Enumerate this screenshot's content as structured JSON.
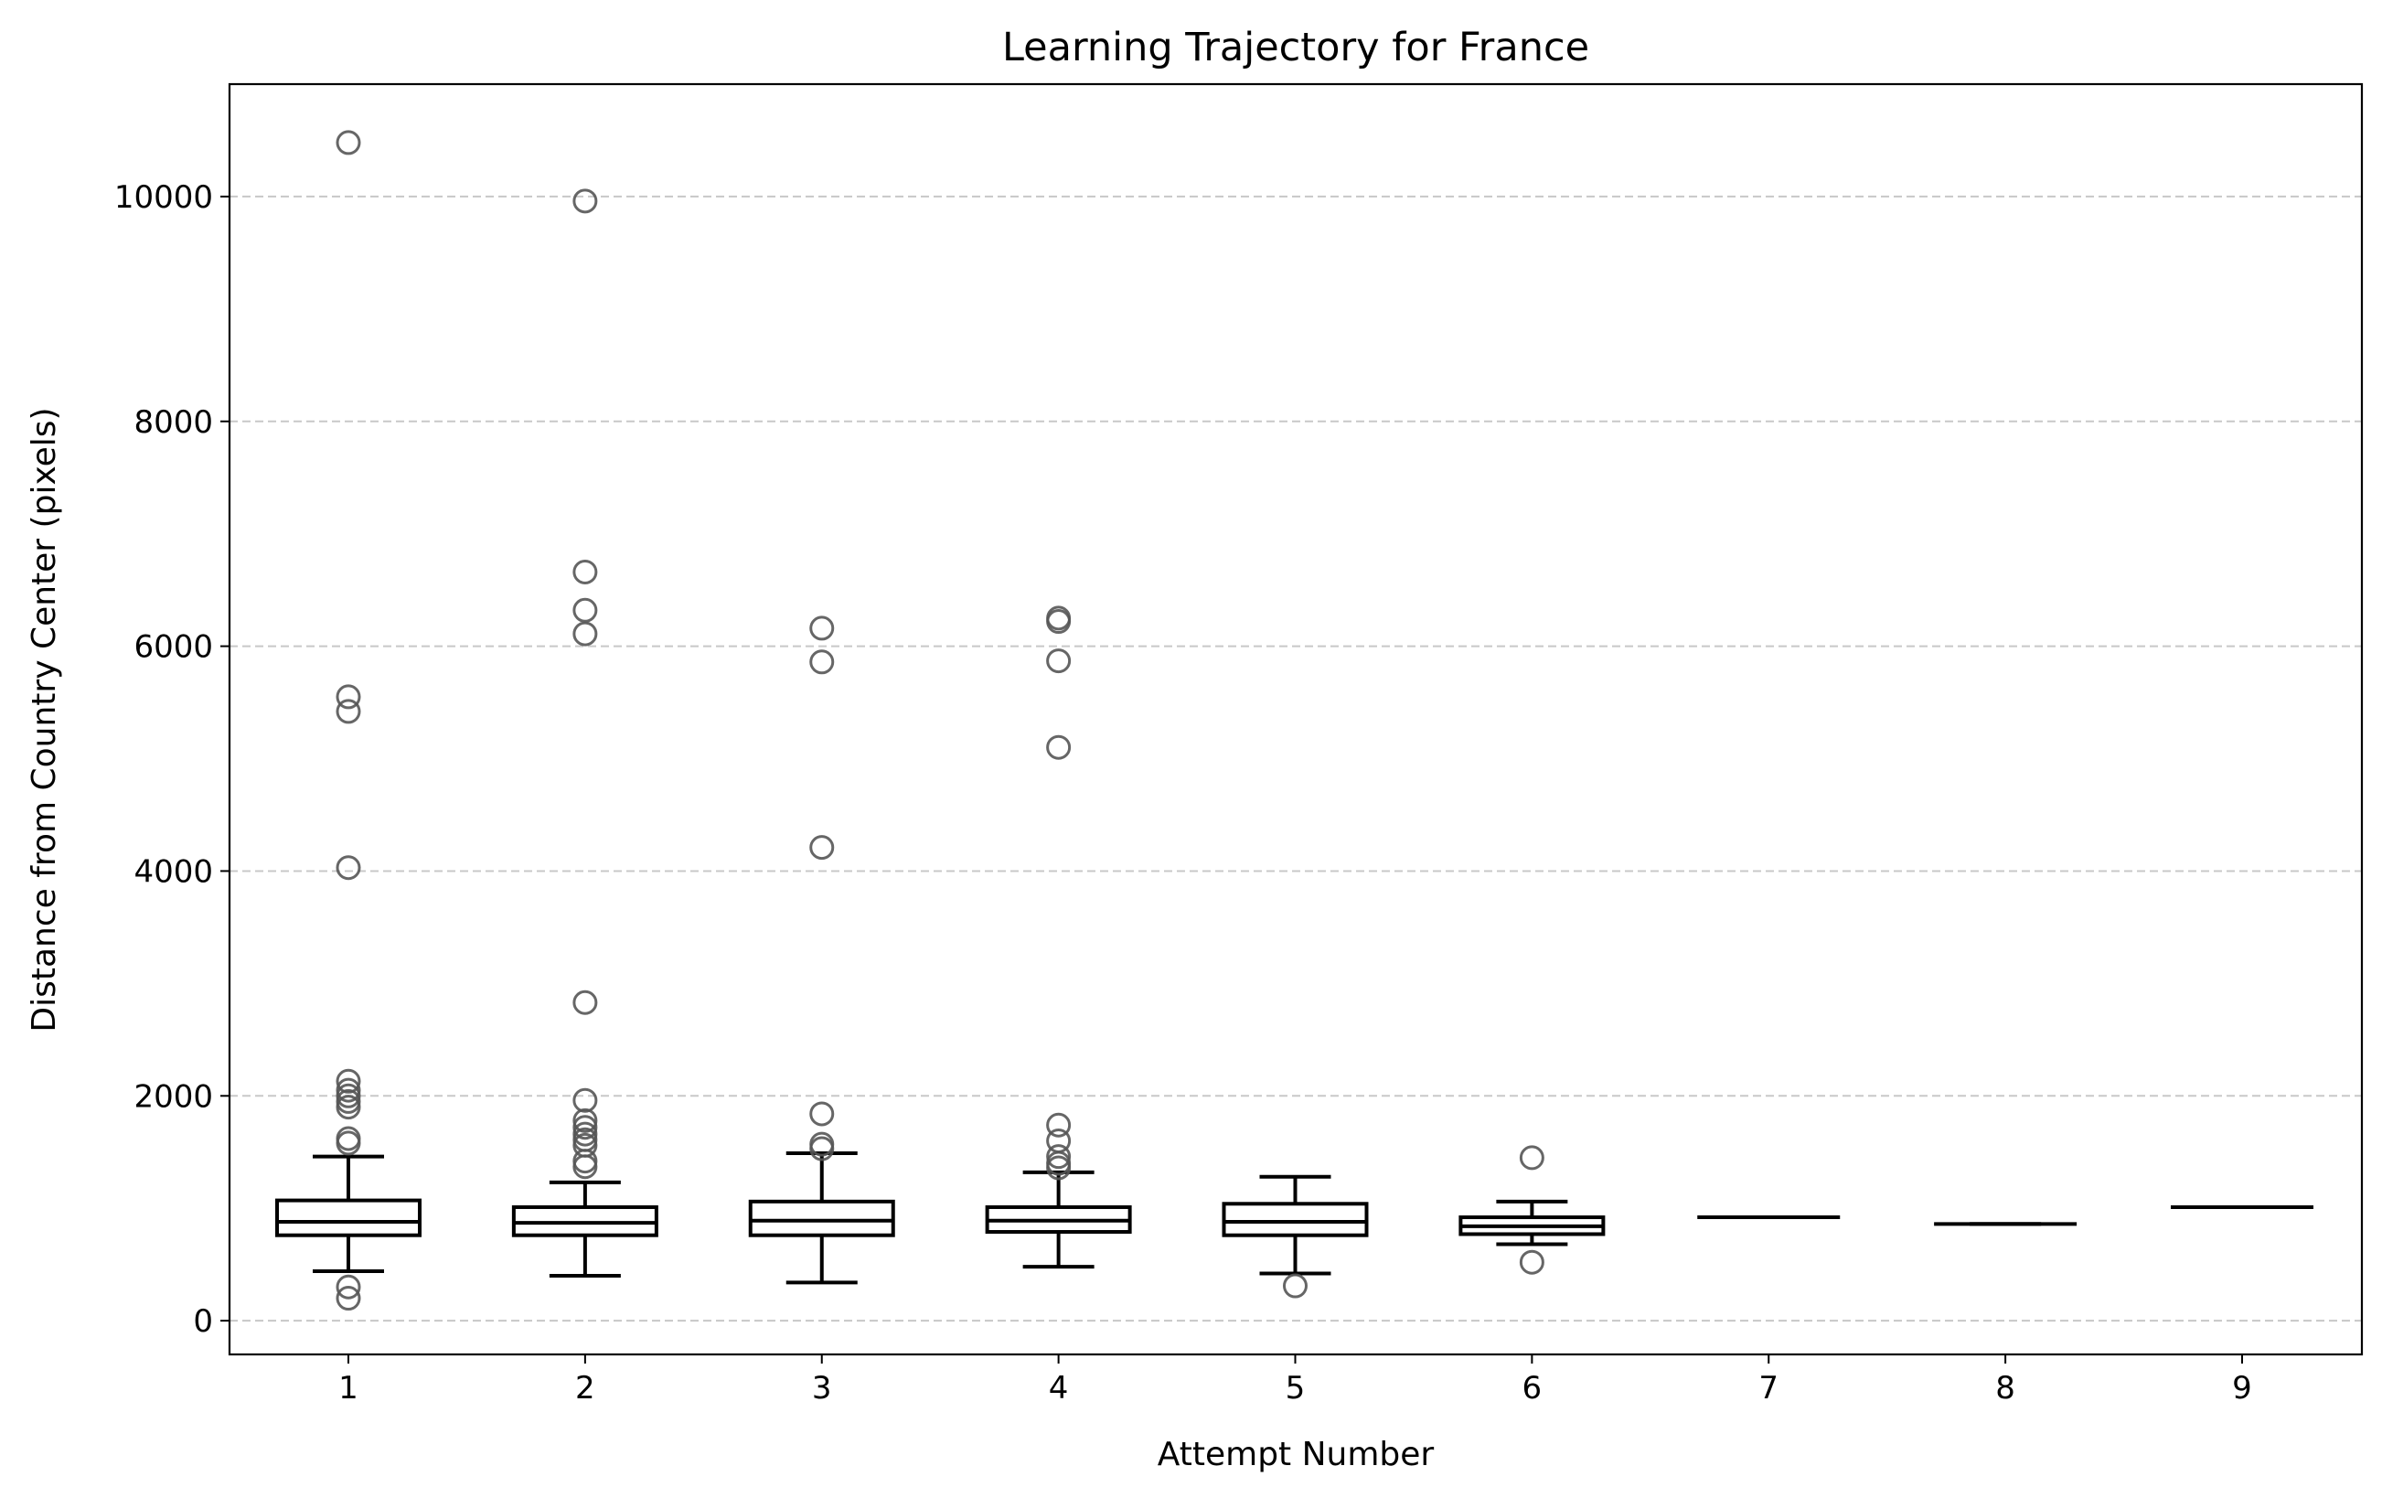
{
  "chart_data": {
    "type": "box",
    "title": "Learning Trajectory for France",
    "xlabel": "Attempt Number",
    "ylabel": "Distance from Country Center (pixels)",
    "categories": [
      "1",
      "2",
      "3",
      "4",
      "5",
      "6",
      "7",
      "8",
      "9"
    ],
    "y_ticks": [
      "0",
      "2000",
      "4000",
      "6000",
      "8000",
      "10000"
    ],
    "y_tick_values": [
      0,
      2000,
      4000,
      6000,
      8000,
      10000
    ],
    "ylim": [
      -300,
      11000
    ],
    "grid": "y-dashed",
    "boxes": [
      {
        "attempt": "1",
        "whisker_low": 440,
        "q1": 760,
        "median": 880,
        "q3": 1070,
        "whisker_high": 1460,
        "outliers": [
          200,
          300,
          1580,
          1620,
          1900,
          1950,
          2000,
          2050,
          2130,
          4030,
          5420,
          5550,
          10480
        ]
      },
      {
        "attempt": "2",
        "whisker_low": 400,
        "q1": 760,
        "median": 870,
        "q3": 1010,
        "whisker_high": 1230,
        "outliers": [
          1370,
          1420,
          1560,
          1610,
          1660,
          1720,
          1780,
          1960,
          2830,
          6110,
          6320,
          6660,
          9960
        ]
      },
      {
        "attempt": "3",
        "whisker_low": 340,
        "q1": 760,
        "median": 890,
        "q3": 1060,
        "whisker_high": 1490,
        "outliers": [
          1530,
          1570,
          1840,
          4210,
          5860,
          6160
        ]
      },
      {
        "attempt": "4",
        "whisker_low": 480,
        "q1": 790,
        "median": 890,
        "q3": 1010,
        "whisker_high": 1320,
        "outliers": [
          1360,
          1400,
          1460,
          1600,
          1740,
          5100,
          5870,
          6220,
          6250
        ]
      },
      {
        "attempt": "5",
        "whisker_low": 420,
        "q1": 760,
        "median": 880,
        "q3": 1040,
        "whisker_high": 1280,
        "outliers": [
          310
        ]
      },
      {
        "attempt": "6",
        "whisker_low": 680,
        "q1": 770,
        "median": 840,
        "q3": 920,
        "whisker_high": 1060,
        "outliers": [
          520,
          1450
        ]
      },
      {
        "attempt": "7",
        "whisker_low": 920,
        "q1": 920,
        "median": 920,
        "q3": 920,
        "whisker_high": 920,
        "outliers": []
      },
      {
        "attempt": "8",
        "whisker_low": 860,
        "q1": 860,
        "median": 860,
        "q3": 860,
        "whisker_high": 860,
        "outliers": []
      },
      {
        "attempt": "9",
        "whisker_low": 1010,
        "q1": 1010,
        "median": 1010,
        "q3": 1010,
        "whisker_high": 1010,
        "outliers": []
      }
    ],
    "colors": {
      "box_stroke": "#000000",
      "box_fill": "#ffffff",
      "outlier_stroke": "#555555",
      "grid": "#c8c8c8",
      "axes": "#000000"
    }
  }
}
